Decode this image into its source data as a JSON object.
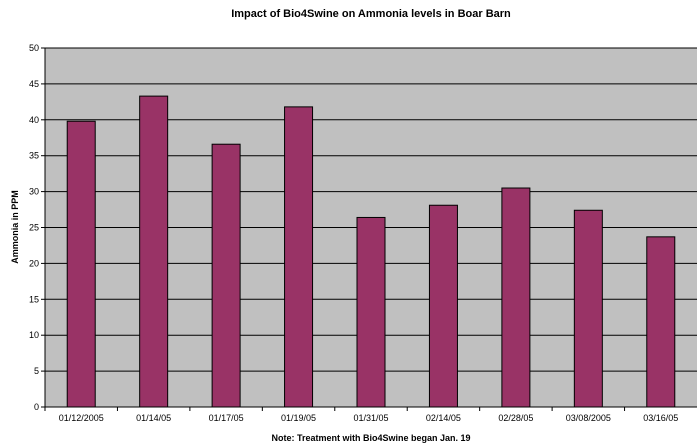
{
  "chart_data": {
    "type": "bar",
    "title": "Impact of Bio4Swine on Ammonia levels in Boar Barn",
    "xlabel": "Note: Treatment with Bio4Swine began Jan. 19",
    "ylabel": "Ammonia in PPM",
    "categories": [
      "01/12/2005",
      "01/14/05",
      "01/17/05",
      "01/19/05",
      "01/31/05",
      "02/14/05",
      "02/28/05",
      "03/08/2005",
      "03/16/05"
    ],
    "values": [
      39.8,
      43.3,
      36.6,
      41.8,
      26.4,
      28.1,
      30.5,
      27.4,
      23.7
    ],
    "ylim": [
      0,
      50
    ],
    "yticks": [
      0,
      5,
      10,
      15,
      20,
      25,
      30,
      35,
      40,
      45,
      50
    ],
    "grid": true,
    "legend": "none",
    "colors": {
      "bar": "#993366",
      "plot_background": "#c0c0c0",
      "gridline": "#000000"
    }
  }
}
